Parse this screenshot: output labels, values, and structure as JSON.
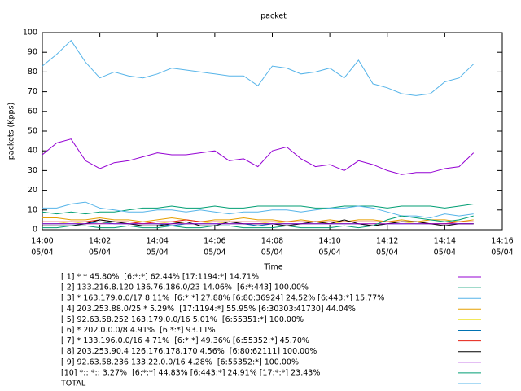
{
  "chart_data": {
    "type": "line",
    "title": "packet",
    "xlabel": "Time",
    "ylabel": "packets (Kpps)",
    "xlim": [
      0,
      16
    ],
    "xticks": [
      {
        "value": 0,
        "label": [
          "14:00",
          "05/04"
        ]
      },
      {
        "value": 2,
        "label": [
          "14:02",
          "05/04"
        ]
      },
      {
        "value": 4,
        "label": [
          "14:04",
          "05/04"
        ]
      },
      {
        "value": 6,
        "label": [
          "14:06",
          "05/04"
        ]
      },
      {
        "value": 8,
        "label": [
          "14:08",
          "05/04"
        ]
      },
      {
        "value": 10,
        "label": [
          "14:10",
          "05/04"
        ]
      },
      {
        "value": 12,
        "label": [
          "14:12",
          "05/04"
        ]
      },
      {
        "value": 14,
        "label": [
          "14:14",
          "05/04"
        ]
      },
      {
        "value": 16,
        "label": [
          "14:16",
          "05/04"
        ]
      }
    ],
    "ylim": [
      0,
      100
    ],
    "yticks": [
      0,
      10,
      20,
      30,
      40,
      50,
      60,
      70,
      80,
      90,
      100
    ],
    "x": [
      0,
      0.5,
      1,
      1.5,
      2,
      2.5,
      3,
      3.5,
      4,
      4.5,
      5,
      5.5,
      6,
      6.5,
      7,
      7.5,
      8,
      8.5,
      9,
      9.5,
      10,
      10.5,
      11,
      11.5,
      12,
      12.5,
      13,
      13.5,
      14,
      14.5,
      15
    ],
    "series": [
      {
        "name": "[ 1] * * 45.80%  [6:*:*] 62.44% [17:1194:*] 14.71%",
        "color": "#9400d3",
        "values": [
          38,
          44,
          46,
          35,
          31,
          34,
          35,
          37,
          39,
          38,
          38,
          39,
          40,
          35,
          36,
          32,
          40,
          42,
          36,
          32,
          33,
          30,
          35,
          33,
          30,
          28,
          29,
          29,
          31,
          32,
          39
        ]
      },
      {
        "name": "[ 2] 133.216.8.120 136.76.186.0/23 14.06%  [6:*:443] 100.00%",
        "color": "#009e73",
        "values": [
          9,
          8,
          9,
          8,
          9,
          9,
          10,
          11,
          11,
          12,
          11,
          11,
          12,
          11,
          11,
          12,
          12,
          12,
          12,
          11,
          11,
          12,
          12,
          12,
          11,
          12,
          12,
          12,
          11,
          12,
          13
        ]
      },
      {
        "name": "[ 3] * 163.179.0.0/17 8.11%  [6:*:*] 27.88% [6:80:36924] 24.52% [6:443:*] 15.77%",
        "color": "#56b4e9",
        "values": [
          11,
          11,
          13,
          14,
          11,
          10,
          9,
          9,
          10,
          10,
          9,
          10,
          9,
          8,
          9,
          9,
          10,
          10,
          9,
          10,
          11,
          11,
          12,
          11,
          9,
          7,
          7,
          6,
          8,
          7,
          8
        ]
      },
      {
        "name": "[ 4] 203.253.88.0/25 * 5.29%  [17:1194:*] 55.95% [6:30303:41730] 44.04%",
        "color": "#e69f00",
        "values": [
          6,
          6,
          5,
          5,
          6,
          5,
          5,
          4,
          5,
          6,
          5,
          4,
          5,
          5,
          6,
          5,
          5,
          4,
          5,
          4,
          5,
          4,
          5,
          5,
          4,
          5,
          4,
          5,
          5,
          4,
          5
        ]
      },
      {
        "name": "[ 5] 92.63.58.252 163.179.0.0/16 5.01%  [6:55351:*] 100.00%",
        "color": "#f0e442",
        "values": [
          3,
          3,
          4,
          3,
          3,
          4,
          3,
          3,
          3,
          4,
          3,
          3,
          4,
          3,
          3,
          3,
          4,
          3,
          3,
          3,
          4,
          3,
          3,
          3,
          3,
          4,
          3,
          3,
          3,
          3,
          3
        ]
      },
      {
        "name": "[ 6] * 202.0.0.0/8 4.91%  [6:*:*] 93.11%",
        "color": "#0072b2",
        "values": [
          3,
          3,
          3,
          3,
          4,
          3,
          3,
          3,
          3,
          2,
          3,
          3,
          3,
          3,
          3,
          2,
          3,
          3,
          3,
          3,
          3,
          3,
          3,
          2,
          3,
          3,
          3,
          3,
          3,
          3,
          3
        ]
      },
      {
        "name": "[ 7] * 133.196.0.0/16 4.71%  [6:*:*] 49.36% [6:55352:*] 45.70%",
        "color": "#e51e10",
        "values": [
          4,
          4,
          4,
          4,
          5,
          4,
          4,
          3,
          4,
          4,
          5,
          4,
          4,
          4,
          4,
          4,
          4,
          4,
          4,
          4,
          4,
          4,
          4,
          4,
          4,
          4,
          4,
          3,
          3,
          4,
          4
        ]
      },
      {
        "name": "[ 8] 203.253.90.4 126.176.178.170 4.56%  [6:80:62111] 100.00%",
        "color": "#000000",
        "values": [
          2,
          2,
          2,
          3,
          5,
          4,
          3,
          2,
          2,
          3,
          4,
          2,
          2,
          4,
          3,
          3,
          3,
          2,
          3,
          4,
          3,
          5,
          3,
          2,
          3,
          4,
          4,
          3,
          2,
          3,
          3
        ]
      },
      {
        "name": "[ 9] 92.63.58.236 133.22.0.0/16 4.28%  [6:55352:*] 100.00%",
        "color": "#9400d3",
        "values": [
          3,
          3,
          3,
          3,
          3,
          3,
          3,
          3,
          3,
          3,
          3,
          3,
          3,
          3,
          3,
          3,
          3,
          3,
          3,
          3,
          3,
          3,
          3,
          3,
          3,
          3,
          3,
          3,
          3,
          3,
          3
        ]
      },
      {
        "name": "[10] *:: *:: 3.27%  [6:*:*] 44.83% [6:443:*] 24.91% [17:*:*] 23.43%",
        "color": "#009e73",
        "values": [
          1,
          1,
          2,
          2,
          1,
          1,
          2,
          1,
          1,
          2,
          1,
          1,
          2,
          2,
          1,
          1,
          1,
          2,
          1,
          1,
          1,
          2,
          1,
          2,
          5,
          7,
          6,
          5,
          4,
          5,
          7
        ]
      },
      {
        "name": "TOTAL",
        "color": "#56b4e9",
        "values": [
          83,
          89,
          96,
          85,
          77,
          80,
          78,
          77,
          79,
          82,
          81,
          80,
          79,
          78,
          78,
          73,
          83,
          82,
          79,
          80,
          82,
          77,
          86,
          74,
          72,
          69,
          68,
          69,
          75,
          77,
          84
        ]
      }
    ]
  }
}
